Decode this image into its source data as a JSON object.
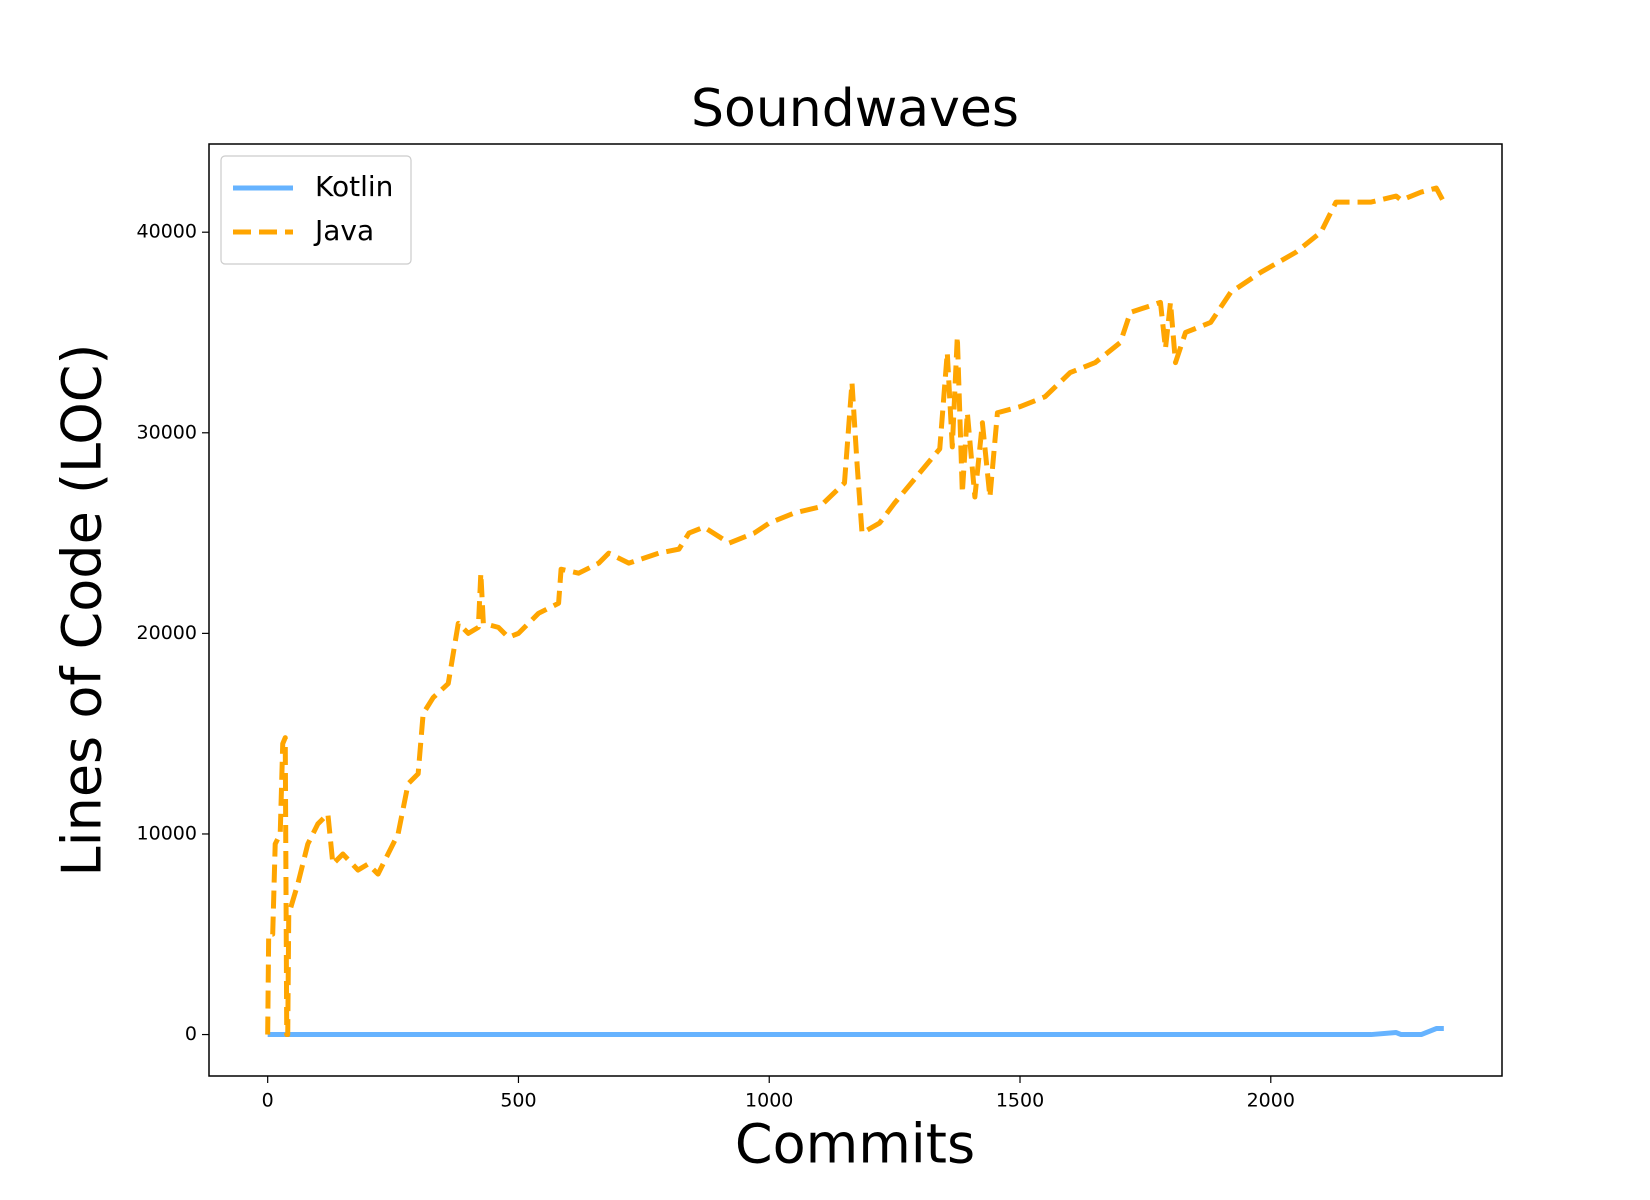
{
  "chart_data": {
    "type": "line",
    "title": "Soundwaves",
    "xlabel": "Commits",
    "ylabel": "Lines of Code (LOC)",
    "x": [
      0,
      2,
      10,
      15,
      25,
      30,
      35,
      38,
      40,
      42,
      60,
      80,
      100,
      120,
      130,
      150,
      180,
      200,
      220,
      240,
      260,
      280,
      300,
      310,
      330,
      360,
      380,
      400,
      420,
      425,
      430,
      460,
      480,
      500,
      540,
      580,
      585,
      620,
      660,
      680,
      720,
      780,
      820,
      840,
      870,
      920,
      970,
      1000,
      1050,
      1100,
      1150,
      1165,
      1175,
      1185,
      1220,
      1250,
      1300,
      1340,
      1355,
      1365,
      1375,
      1385,
      1395,
      1410,
      1425,
      1440,
      1455,
      1500,
      1550,
      1600,
      1650,
      1700,
      1720,
      1780,
      1790,
      1800,
      1810,
      1830,
      1880,
      1920,
      1980,
      2050,
      2100,
      2130,
      2200,
      2250,
      2260,
      2300,
      2330,
      2345
    ],
    "series": [
      {
        "name": "Kotlin",
        "color": "#66b3ff",
        "dash": false,
        "values": [
          0,
          0,
          0,
          0,
          0,
          0,
          0,
          0,
          0,
          0,
          0,
          0,
          0,
          0,
          0,
          0,
          0,
          0,
          0,
          0,
          0,
          0,
          0,
          0,
          0,
          0,
          0,
          0,
          0,
          0,
          0,
          0,
          0,
          0,
          0,
          0,
          0,
          0,
          0,
          0,
          0,
          0,
          0,
          0,
          0,
          0,
          0,
          0,
          0,
          0,
          0,
          0,
          0,
          0,
          0,
          0,
          0,
          0,
          0,
          0,
          0,
          0,
          0,
          0,
          0,
          0,
          0,
          0,
          0,
          0,
          0,
          0,
          0,
          0,
          0,
          0,
          0,
          0,
          0,
          0,
          0,
          0,
          0,
          0,
          0,
          100,
          0,
          0,
          300,
          300
        ]
      },
      {
        "name": "Java",
        "color": "#ffa500",
        "dash": true,
        "values": [
          0,
          5000,
          5000,
          9500,
          10000,
          14500,
          14800,
          0,
          0,
          6000,
          7500,
          9500,
          10500,
          11000,
          8500,
          9000,
          8200,
          8500,
          8000,
          9000,
          10000,
          12500,
          13000,
          16000,
          16800,
          17500,
          20500,
          20000,
          20300,
          23000,
          20500,
          20300,
          19800,
          20000,
          21000,
          21500,
          23200,
          23000,
          23500,
          24000,
          23500,
          24000,
          24200,
          25000,
          25300,
          24500,
          25000,
          25500,
          26000,
          26300,
          27500,
          32500,
          28500,
          25000,
          25500,
          26500,
          28000,
          29200,
          34000,
          29300,
          34800,
          27000,
          31000,
          26800,
          30500,
          26800,
          31000,
          31300,
          31800,
          33000,
          33500,
          34500,
          36000,
          36500,
          34200,
          36500,
          33500,
          35000,
          35500,
          37000,
          38000,
          39000,
          40000,
          41500,
          41500,
          41800,
          41600,
          42000,
          42200,
          41500
        ]
      }
    ],
    "xlim": [
      -117,
      2461
    ],
    "ylim": [
      -2066,
      44397
    ],
    "xticks": [
      0,
      500,
      1000,
      1500,
      2000
    ],
    "yticks": [
      0,
      10000,
      20000,
      30000,
      40000
    ],
    "legend": "upper left",
    "grid": false
  }
}
